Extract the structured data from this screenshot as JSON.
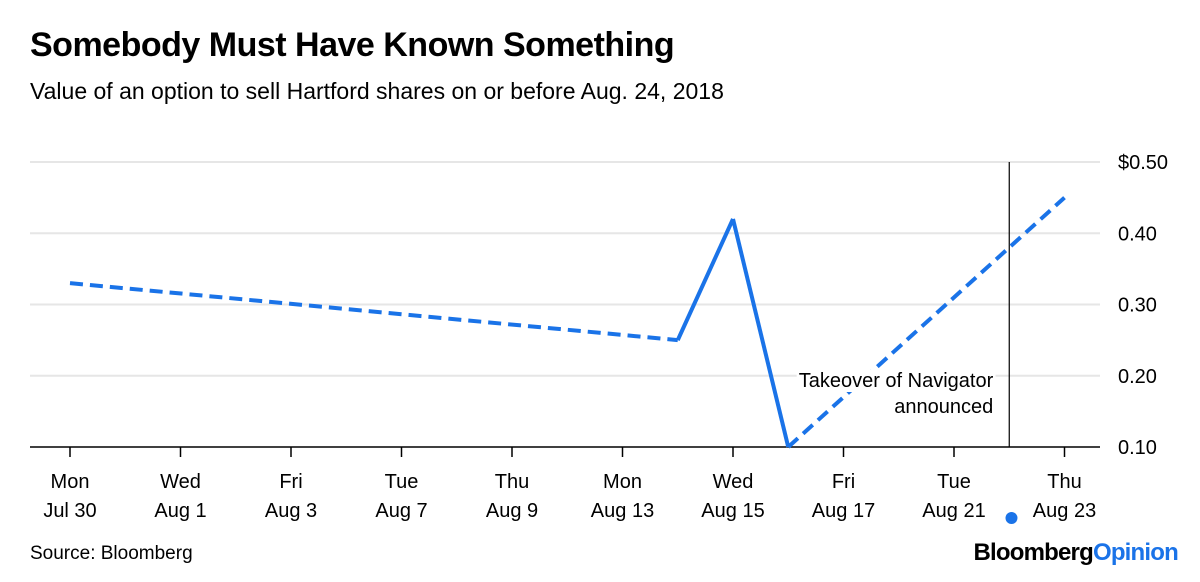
{
  "title": "Somebody Must Have Known Something",
  "subtitle": "Value of an option to sell Hartford shares on or before Aug. 24, 2018",
  "source": "Source: Bloomberg",
  "brand": {
    "part1": "Bloomberg",
    "part2": "Opinion"
  },
  "colors": {
    "line": "#1a73e8",
    "grid": "#e6e6e6",
    "axis": "#000000"
  },
  "chart_data": {
    "type": "line",
    "title": "Somebody Must Have Known Something",
    "subtitle": "Value of an option to sell Hartford shares on or before Aug. 24, 2018",
    "xlabel": "",
    "ylabel": "",
    "ylim": [
      0.1,
      0.5
    ],
    "y_ticks": [
      "$0.50",
      "0.40",
      "0.30",
      "0.20",
      "0.10"
    ],
    "y_tick_values": [
      0.5,
      0.4,
      0.3,
      0.2,
      0.1
    ],
    "y_axis_side": "right",
    "grid": true,
    "x_ticks": [
      {
        "line1": "Mon",
        "line2": "Jul 30"
      },
      {
        "line1": "Wed",
        "line2": "Aug 1"
      },
      {
        "line1": "Fri",
        "line2": "Aug 3"
      },
      {
        "line1": "Tue",
        "line2": "Aug 7"
      },
      {
        "line1": "Thu",
        "line2": "Aug 9"
      },
      {
        "line1": "Mon",
        "line2": "Aug 13"
      },
      {
        "line1": "Wed",
        "line2": "Aug 15"
      },
      {
        "line1": "Fri",
        "line2": "Aug 17"
      },
      {
        "line1": "Tue",
        "line2": "Aug 21"
      },
      {
        "line1": "Thu",
        "line2": "Aug 23"
      }
    ],
    "points": [
      {
        "x": "Jul 30",
        "y": 0.33,
        "traded": false
      },
      {
        "x": "Aug 14",
        "y": 0.25,
        "traded": true
      },
      {
        "x": "Aug 15",
        "y": 0.42,
        "traded": true
      },
      {
        "x": "Aug 16",
        "y": 0.1,
        "traded": false
      },
      {
        "x": "Aug 23",
        "y": 0.45,
        "traded": false
      }
    ],
    "highlight_point": {
      "x": "Aug 23",
      "y": 0.45
    },
    "annotation": {
      "x": "Aug 22",
      "line1": "Takeover of Navigator",
      "line2": "announced"
    }
  }
}
